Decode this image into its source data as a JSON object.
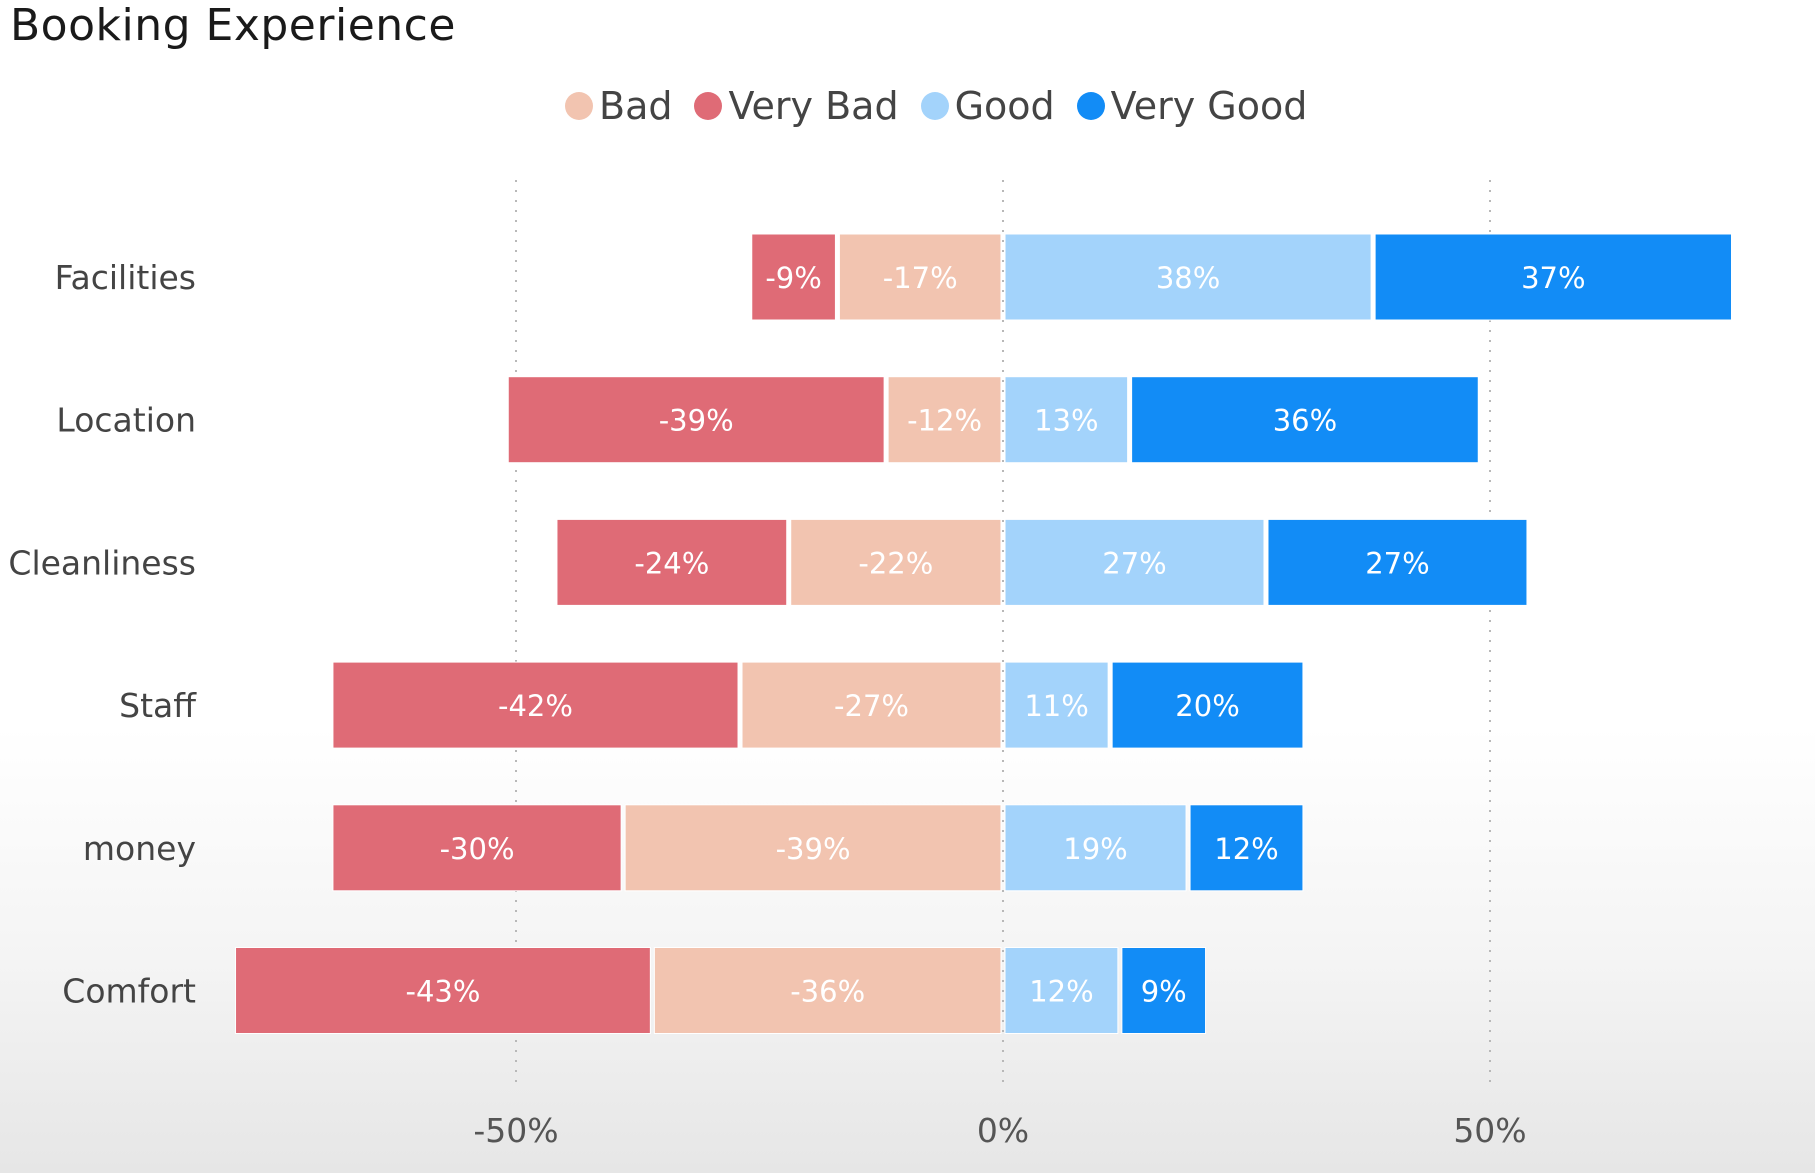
{
  "title": "Booking Experience",
  "legend": [
    {
      "label": "Bad",
      "color": "#f2c4b0"
    },
    {
      "label": "Very Bad",
      "color": "#df6b76"
    },
    {
      "label": "Good",
      "color": "#a3d3fb"
    },
    {
      "label": "Very Good",
      "color": "#128cf6"
    }
  ],
  "chart_data": {
    "type": "bar",
    "orientation": "horizontal",
    "stacked": "diverging",
    "title": "Booking Experience",
    "categories": [
      "Facilities",
      "Location",
      "Cleanliness",
      "Staff",
      "money",
      "Comfort"
    ],
    "series": [
      {
        "name": "Bad",
        "color": "#f2c4b0",
        "label_color": "#ffffff",
        "values": [
          -17,
          -12,
          -22,
          -27,
          -39,
          -36
        ]
      },
      {
        "name": "Very Bad",
        "color": "#df6b76",
        "label_color": "#ffffff",
        "values": [
          -9,
          -39,
          -24,
          -42,
          -30,
          -43
        ]
      },
      {
        "name": "Good",
        "color": "#a3d3fb",
        "label_color": "#ffffff",
        "values": [
          38,
          13,
          27,
          11,
          19,
          12
        ]
      },
      {
        "name": "Very Good",
        "color": "#128cf6",
        "label_color": "#ffffff",
        "values": [
          37,
          36,
          27,
          20,
          12,
          9
        ]
      }
    ],
    "x_ticks": [
      "-50%",
      "0%",
      "50%"
    ],
    "x_tick_values": [
      -50,
      0,
      50
    ],
    "xlim": [
      -79,
      76
    ],
    "grid": "vertical dotted",
    "legend_position": "top-center"
  }
}
